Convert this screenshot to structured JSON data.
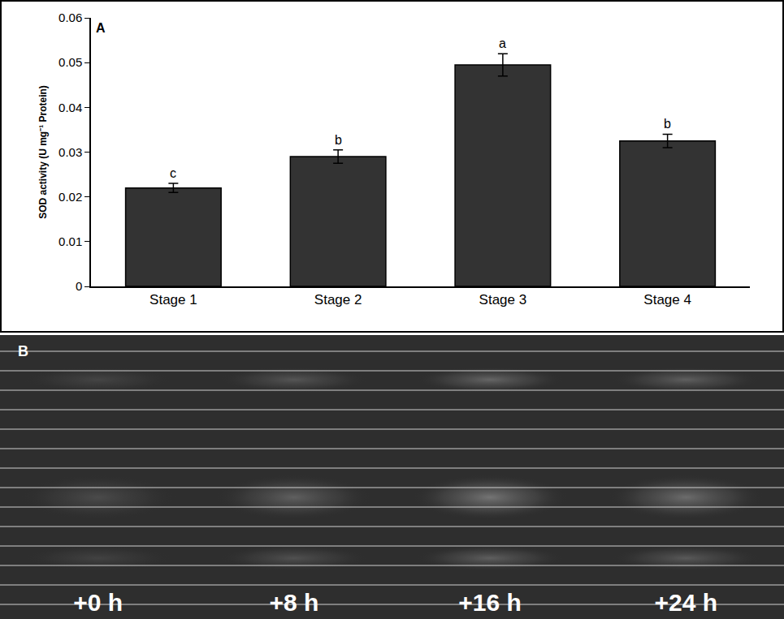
{
  "chart_data": {
    "type": "bar",
    "panel": "A",
    "y_label": "SOD activity (U mg⁻¹ Protein)",
    "categories": [
      "Stage 1",
      "Stage 2",
      "Stage 3",
      "Stage 4"
    ],
    "values": [
      0.022,
      0.029,
      0.0495,
      0.0325
    ],
    "errors": [
      0.001,
      0.0015,
      0.0025,
      0.0015
    ],
    "letters": [
      "c",
      "b",
      "a",
      "b"
    ],
    "color": "#333333",
    "ylim": [
      0,
      0.06
    ],
    "yticks": [
      0,
      0.01,
      0.02,
      0.03,
      0.04,
      0.05,
      0.06
    ],
    "grid": false
  },
  "gel_panel": {
    "panel": "B",
    "lane_labels": [
      "+0 h",
      "+8 h",
      "+16 h",
      "+24 h"
    ]
  }
}
